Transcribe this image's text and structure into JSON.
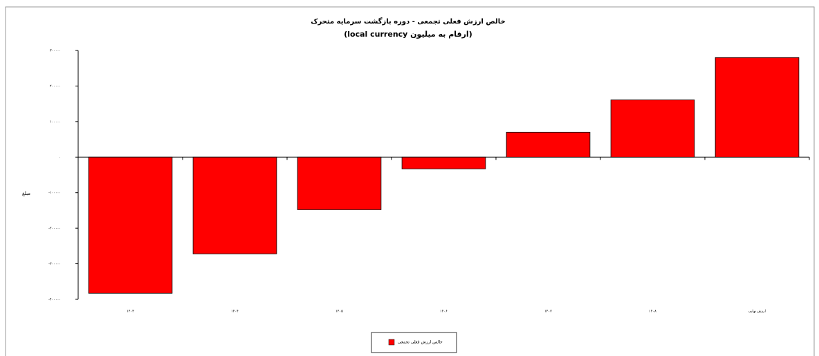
{
  "chart_data": {
    "type": "bar",
    "title": "خالص ارزش فعلی تجمعی - دوره بازگشت سرمایه متحرک",
    "subtitle": "(ارقام به میلیون local currency)",
    "y_label": "مبلغ",
    "categories": [
      "۱۴۰۳",
      "۱۴۰۴",
      "۱۴۰۵",
      "۱۴۰۶",
      "۱۴۰۷",
      "۱۴۰۸",
      "ارزش نهایی"
    ],
    "series": [
      {
        "name": "خالص ارزش فعلی تجمعی",
        "color": "#ff0000",
        "values": [
          -383000,
          -272000,
          -148000,
          -33000,
          70000,
          161000,
          280000
        ]
      }
    ],
    "ylim": [
      -400000,
      300000
    ],
    "yticks": [
      {
        "value": 300000,
        "label": "۳۰۰۰۰۰"
      },
      {
        "value": 200000,
        "label": "۲۰۰۰۰۰"
      },
      {
        "value": 100000,
        "label": "۱۰۰۰۰۰"
      },
      {
        "value": 0,
        "label": "۰"
      },
      {
        "value": -100000,
        "label": "-۱۰۰۰۰۰"
      },
      {
        "value": -200000,
        "label": "-۲۰۰۰۰۰"
      },
      {
        "value": -300000,
        "label": "-۳۰۰۰۰۰"
      },
      {
        "value": -400000,
        "label": "-۴۰۰۰۰۰"
      }
    ],
    "legend": "bottom"
  }
}
